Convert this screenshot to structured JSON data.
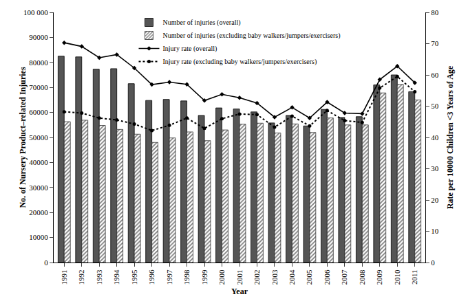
{
  "chart_data": {
    "type": "bar",
    "x_label": "Year",
    "y_label": "No. of Nursery Product–related Injuries",
    "y2_label": "Rate per 10000 Children <3 Years of Age",
    "categories": [
      "1991",
      "1992",
      "1993",
      "1994",
      "1995",
      "1996",
      "1997",
      "1998",
      "1999",
      "2000",
      "2001",
      "2002",
      "2003",
      "2004",
      "2005",
      "2006",
      "2007",
      "2008",
      "2009",
      "2010",
      "2011"
    ],
    "series": [
      {
        "name": "Number of injuries (overall)",
        "type": "bar",
        "color": "#555555",
        "marker": "solid",
        "values": [
          82500,
          82200,
          77300,
          77500,
          71500,
          64800,
          65200,
          64600,
          58800,
          61800,
          61400,
          60200,
          55800,
          58800,
          54600,
          61200,
          58000,
          58300,
          71000,
          75000,
          68300
        ]
      },
      {
        "name": "Number of injuries (excluding baby walkers/jumpers/exercisers)",
        "type": "bar",
        "color": "#777777",
        "marker": "hatched",
        "values": [
          56300,
          56900,
          54800,
          53200,
          51300,
          48000,
          49800,
          52200,
          48700,
          53000,
          55300,
          55700,
          51800,
          55400,
          52000,
          57800,
          55000,
          55000,
          67800,
          71200,
          65000
        ]
      },
      {
        "name": "Injury rate (overall)",
        "type": "line",
        "axis": "y2",
        "color": "#000000",
        "marker": "diamond",
        "line_style": "solid",
        "values": [
          70.3,
          69.1,
          65.5,
          66.5,
          62.2,
          56.9,
          57.7,
          57.0,
          51.8,
          53.8,
          52.7,
          51.0,
          46.5,
          49.6,
          46.2,
          51.3,
          47.8,
          47.6,
          58.5,
          62.8,
          57.5
        ]
      },
      {
        "name": "Injury rate (excluding baby walkers/jumpers/exercisers)",
        "type": "line",
        "axis": "y2",
        "color": "#000000",
        "marker": "circle",
        "line_style": "dot",
        "values": [
          48.2,
          47.8,
          46.2,
          45.6,
          44.3,
          42.2,
          43.9,
          46.2,
          42.9,
          46.0,
          47.5,
          47.3,
          43.3,
          46.8,
          43.7,
          48.6,
          45.4,
          44.8,
          55.8,
          59.5,
          54.6
        ]
      }
    ],
    "ylim": [
      0,
      100000
    ],
    "yticks": [
      0,
      10000,
      20000,
      30000,
      40000,
      50000,
      60000,
      70000,
      80000,
      90000,
      {
        "value": 100000,
        "label": "100 000"
      }
    ],
    "y2lim": [
      0,
      80
    ],
    "y2ticks": [
      0,
      10,
      20,
      30,
      40,
      50,
      60,
      70,
      80
    ],
    "legend": "top",
    "grid": false
  }
}
